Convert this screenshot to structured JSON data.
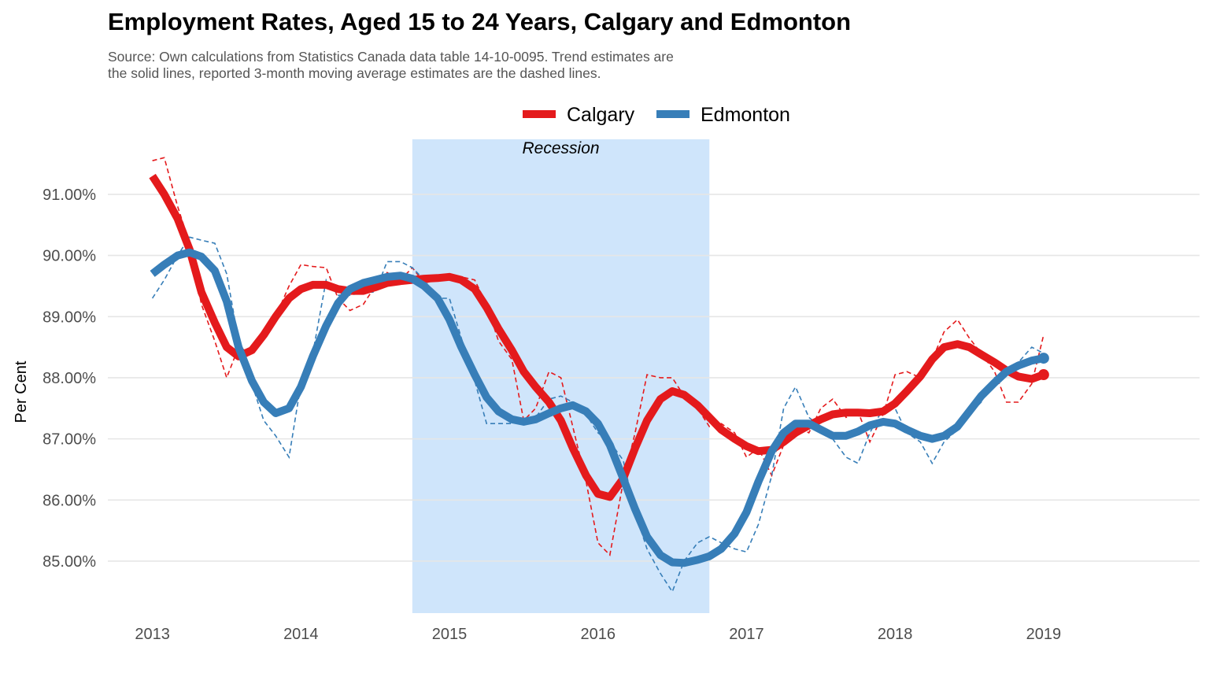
{
  "chart_data": {
    "type": "line",
    "title": "Employment Rates, Aged 15 to 24 Years, Calgary and Edmonton",
    "subtitle_lines": [
      "Source: Own calculations from Statistics Canada data table 14-10-0095. Trend estimates are",
      "the solid lines, reported 3-month moving average estimates are the dashed lines."
    ],
    "ylabel": "Per Cent",
    "xlabel": "",
    "x_ticks": [
      "2013",
      "2014",
      "2015",
      "2016",
      "2017",
      "2018",
      "2019"
    ],
    "y_ticks": [
      "85.00%",
      "86.00%",
      "87.00%",
      "88.00%",
      "89.00%",
      "90.00%",
      "91.00%"
    ],
    "y_tick_values": [
      85,
      86,
      87,
      88,
      89,
      90,
      91
    ],
    "xlim": [
      2012.7,
      2020.05
    ],
    "ylim": [
      84.15,
      91.9
    ],
    "grid": true,
    "legend_position": "top",
    "recession": {
      "start": 2014.75,
      "end": 2016.75,
      "label": "Recession",
      "color": "#cfe5fb"
    },
    "series": [
      {
        "name": "Calgary",
        "color": "#e41a1c",
        "trend": [
          [
            2013.0,
            91.3
          ],
          [
            2013.08,
            91.0
          ],
          [
            2013.17,
            90.6
          ],
          [
            2013.25,
            90.1
          ],
          [
            2013.33,
            89.4
          ],
          [
            2013.42,
            88.9
          ],
          [
            2013.5,
            88.5
          ],
          [
            2013.58,
            88.35
          ],
          [
            2013.67,
            88.45
          ],
          [
            2013.75,
            88.7
          ],
          [
            2013.83,
            89.0
          ],
          [
            2013.92,
            89.3
          ],
          [
            2014.0,
            89.45
          ],
          [
            2014.08,
            89.52
          ],
          [
            2014.17,
            89.52
          ],
          [
            2014.25,
            89.45
          ],
          [
            2014.33,
            89.42
          ],
          [
            2014.42,
            89.42
          ],
          [
            2014.5,
            89.48
          ],
          [
            2014.58,
            89.55
          ],
          [
            2014.67,
            89.58
          ],
          [
            2014.75,
            89.6
          ],
          [
            2014.83,
            89.62
          ],
          [
            2014.92,
            89.63
          ],
          [
            2015.0,
            89.65
          ],
          [
            2015.08,
            89.6
          ],
          [
            2015.17,
            89.45
          ],
          [
            2015.25,
            89.15
          ],
          [
            2015.33,
            88.8
          ],
          [
            2015.42,
            88.45
          ],
          [
            2015.5,
            88.1
          ],
          [
            2015.58,
            87.85
          ],
          [
            2015.67,
            87.6
          ],
          [
            2015.75,
            87.3
          ],
          [
            2015.83,
            86.85
          ],
          [
            2015.92,
            86.4
          ],
          [
            2016.0,
            86.1
          ],
          [
            2016.08,
            86.05
          ],
          [
            2016.17,
            86.35
          ],
          [
            2016.25,
            86.85
          ],
          [
            2016.33,
            87.3
          ],
          [
            2016.42,
            87.65
          ],
          [
            2016.5,
            87.78
          ],
          [
            2016.58,
            87.72
          ],
          [
            2016.67,
            87.55
          ],
          [
            2016.75,
            87.35
          ],
          [
            2016.83,
            87.15
          ],
          [
            2016.92,
            87.0
          ],
          [
            2017.0,
            86.88
          ],
          [
            2017.08,
            86.8
          ],
          [
            2017.17,
            86.82
          ],
          [
            2017.25,
            86.95
          ],
          [
            2017.33,
            87.1
          ],
          [
            2017.42,
            87.22
          ],
          [
            2017.5,
            87.32
          ],
          [
            2017.58,
            87.4
          ],
          [
            2017.67,
            87.43
          ],
          [
            2017.75,
            87.43
          ],
          [
            2017.83,
            87.42
          ],
          [
            2017.92,
            87.45
          ],
          [
            2018.0,
            87.58
          ],
          [
            2018.08,
            87.78
          ],
          [
            2018.17,
            88.02
          ],
          [
            2018.25,
            88.3
          ],
          [
            2018.33,
            88.5
          ],
          [
            2018.42,
            88.55
          ],
          [
            2018.5,
            88.5
          ],
          [
            2018.58,
            88.38
          ],
          [
            2018.67,
            88.25
          ],
          [
            2018.75,
            88.12
          ],
          [
            2018.83,
            88.02
          ],
          [
            2018.92,
            87.98
          ],
          [
            2019.0,
            88.05
          ]
        ],
        "reported": [
          [
            2013.0,
            91.55
          ],
          [
            2013.08,
            91.6
          ],
          [
            2013.17,
            90.8
          ],
          [
            2013.25,
            90.2
          ],
          [
            2013.33,
            89.2
          ],
          [
            2013.42,
            88.6
          ],
          [
            2013.5,
            88.0
          ],
          [
            2013.58,
            88.5
          ],
          [
            2013.67,
            88.4
          ],
          [
            2013.75,
            88.7
          ],
          [
            2013.83,
            89.0
          ],
          [
            2013.92,
            89.5
          ],
          [
            2014.0,
            89.85
          ],
          [
            2014.08,
            89.82
          ],
          [
            2014.17,
            89.8
          ],
          [
            2014.25,
            89.3
          ],
          [
            2014.33,
            89.1
          ],
          [
            2014.42,
            89.2
          ],
          [
            2014.5,
            89.5
          ],
          [
            2014.58,
            89.72
          ],
          [
            2014.67,
            89.6
          ],
          [
            2014.75,
            89.8
          ],
          [
            2014.83,
            89.55
          ],
          [
            2014.92,
            89.6
          ],
          [
            2015.0,
            89.7
          ],
          [
            2015.08,
            89.65
          ],
          [
            2015.17,
            89.6
          ],
          [
            2015.25,
            89.2
          ],
          [
            2015.33,
            88.6
          ],
          [
            2015.42,
            88.3
          ],
          [
            2015.5,
            87.3
          ],
          [
            2015.58,
            87.5
          ],
          [
            2015.67,
            88.1
          ],
          [
            2015.75,
            88.0
          ],
          [
            2015.83,
            87.2
          ],
          [
            2015.92,
            86.3
          ],
          [
            2016.0,
            85.3
          ],
          [
            2016.08,
            85.1
          ],
          [
            2016.17,
            86.3
          ],
          [
            2016.25,
            87.1
          ],
          [
            2016.33,
            88.05
          ],
          [
            2016.42,
            88.0
          ],
          [
            2016.5,
            88.0
          ],
          [
            2016.58,
            87.7
          ],
          [
            2016.67,
            87.5
          ],
          [
            2016.75,
            87.2
          ],
          [
            2016.83,
            87.25
          ],
          [
            2016.92,
            87.1
          ],
          [
            2017.0,
            86.7
          ],
          [
            2017.08,
            86.85
          ],
          [
            2017.17,
            86.4
          ],
          [
            2017.25,
            86.9
          ],
          [
            2017.33,
            87.2
          ],
          [
            2017.42,
            87.1
          ],
          [
            2017.5,
            87.5
          ],
          [
            2017.58,
            87.65
          ],
          [
            2017.67,
            87.35
          ],
          [
            2017.75,
            87.45
          ],
          [
            2017.83,
            86.95
          ],
          [
            2017.92,
            87.4
          ],
          [
            2018.0,
            88.05
          ],
          [
            2018.08,
            88.1
          ],
          [
            2018.17,
            88.0
          ],
          [
            2018.25,
            88.3
          ],
          [
            2018.33,
            88.75
          ],
          [
            2018.42,
            88.95
          ],
          [
            2018.5,
            88.65
          ],
          [
            2018.58,
            88.4
          ],
          [
            2018.67,
            88.1
          ],
          [
            2018.75,
            87.6
          ],
          [
            2018.83,
            87.6
          ],
          [
            2018.92,
            87.9
          ],
          [
            2019.0,
            88.7
          ]
        ]
      },
      {
        "name": "Edmonton",
        "color": "#377eb8",
        "trend": [
          [
            2013.0,
            89.7
          ],
          [
            2013.08,
            89.85
          ],
          [
            2013.17,
            90.0
          ],
          [
            2013.25,
            90.05
          ],
          [
            2013.33,
            89.98
          ],
          [
            2013.42,
            89.75
          ],
          [
            2013.5,
            89.25
          ],
          [
            2013.58,
            88.5
          ],
          [
            2013.67,
            87.95
          ],
          [
            2013.75,
            87.6
          ],
          [
            2013.83,
            87.42
          ],
          [
            2013.92,
            87.5
          ],
          [
            2014.0,
            87.85
          ],
          [
            2014.08,
            88.35
          ],
          [
            2014.17,
            88.85
          ],
          [
            2014.25,
            89.22
          ],
          [
            2014.33,
            89.45
          ],
          [
            2014.42,
            89.55
          ],
          [
            2014.5,
            89.6
          ],
          [
            2014.58,
            89.65
          ],
          [
            2014.67,
            89.67
          ],
          [
            2014.75,
            89.62
          ],
          [
            2014.83,
            89.5
          ],
          [
            2014.92,
            89.3
          ],
          [
            2015.0,
            88.95
          ],
          [
            2015.08,
            88.5
          ],
          [
            2015.17,
            88.05
          ],
          [
            2015.25,
            87.68
          ],
          [
            2015.33,
            87.45
          ],
          [
            2015.42,
            87.32
          ],
          [
            2015.5,
            87.28
          ],
          [
            2015.58,
            87.32
          ],
          [
            2015.67,
            87.42
          ],
          [
            2015.75,
            87.5
          ],
          [
            2015.83,
            87.55
          ],
          [
            2015.92,
            87.45
          ],
          [
            2016.0,
            87.25
          ],
          [
            2016.08,
            86.9
          ],
          [
            2016.17,
            86.35
          ],
          [
            2016.25,
            85.85
          ],
          [
            2016.33,
            85.4
          ],
          [
            2016.42,
            85.1
          ],
          [
            2016.5,
            84.98
          ],
          [
            2016.58,
            84.97
          ],
          [
            2016.67,
            85.02
          ],
          [
            2016.75,
            85.08
          ],
          [
            2016.83,
            85.2
          ],
          [
            2016.92,
            85.45
          ],
          [
            2017.0,
            85.8
          ],
          [
            2017.08,
            86.3
          ],
          [
            2017.17,
            86.8
          ],
          [
            2017.25,
            87.1
          ],
          [
            2017.33,
            87.25
          ],
          [
            2017.42,
            87.25
          ],
          [
            2017.5,
            87.15
          ],
          [
            2017.58,
            87.05
          ],
          [
            2017.67,
            87.05
          ],
          [
            2017.75,
            87.12
          ],
          [
            2017.83,
            87.22
          ],
          [
            2017.92,
            87.28
          ],
          [
            2018.0,
            87.25
          ],
          [
            2018.08,
            87.15
          ],
          [
            2018.17,
            87.05
          ],
          [
            2018.25,
            87.0
          ],
          [
            2018.33,
            87.05
          ],
          [
            2018.42,
            87.2
          ],
          [
            2018.5,
            87.45
          ],
          [
            2018.58,
            87.7
          ],
          [
            2018.67,
            87.92
          ],
          [
            2018.75,
            88.1
          ],
          [
            2018.83,
            88.2
          ],
          [
            2018.92,
            88.28
          ],
          [
            2019.0,
            88.32
          ]
        ],
        "reported": [
          [
            2013.0,
            89.3
          ],
          [
            2013.08,
            89.6
          ],
          [
            2013.17,
            90.0
          ],
          [
            2013.25,
            90.3
          ],
          [
            2013.33,
            90.25
          ],
          [
            2013.42,
            90.2
          ],
          [
            2013.5,
            89.7
          ],
          [
            2013.58,
            88.6
          ],
          [
            2013.67,
            87.9
          ],
          [
            2013.75,
            87.3
          ],
          [
            2013.83,
            87.05
          ],
          [
            2013.92,
            86.7
          ],
          [
            2014.0,
            87.9
          ],
          [
            2014.08,
            88.4
          ],
          [
            2014.17,
            89.6
          ],
          [
            2014.25,
            89.35
          ],
          [
            2014.33,
            89.35
          ],
          [
            2014.42,
            89.4
          ],
          [
            2014.5,
            89.4
          ],
          [
            2014.58,
            89.9
          ],
          [
            2014.67,
            89.9
          ],
          [
            2014.75,
            89.8
          ],
          [
            2014.83,
            89.6
          ],
          [
            2014.92,
            89.3
          ],
          [
            2015.0,
            89.3
          ],
          [
            2015.08,
            88.65
          ],
          [
            2015.17,
            87.95
          ],
          [
            2015.25,
            87.25
          ],
          [
            2015.33,
            87.25
          ],
          [
            2015.42,
            87.25
          ],
          [
            2015.5,
            87.3
          ],
          [
            2015.58,
            87.35
          ],
          [
            2015.67,
            87.65
          ],
          [
            2015.75,
            87.7
          ],
          [
            2015.83,
            87.6
          ],
          [
            2015.92,
            87.4
          ],
          [
            2016.0,
            87.1
          ],
          [
            2016.08,
            86.95
          ],
          [
            2016.17,
            86.65
          ],
          [
            2016.25,
            85.8
          ],
          [
            2016.33,
            85.2
          ],
          [
            2016.42,
            84.8
          ],
          [
            2016.5,
            84.5
          ],
          [
            2016.58,
            85.0
          ],
          [
            2016.67,
            85.3
          ],
          [
            2016.75,
            85.4
          ],
          [
            2016.83,
            85.3
          ],
          [
            2016.92,
            85.2
          ],
          [
            2017.0,
            85.15
          ],
          [
            2017.08,
            85.6
          ],
          [
            2017.17,
            86.4
          ],
          [
            2017.25,
            87.5
          ],
          [
            2017.33,
            87.85
          ],
          [
            2017.42,
            87.35
          ],
          [
            2017.5,
            87.2
          ],
          [
            2017.58,
            87.0
          ],
          [
            2017.67,
            86.7
          ],
          [
            2017.75,
            86.6
          ],
          [
            2017.83,
            87.1
          ],
          [
            2017.92,
            87.5
          ],
          [
            2018.0,
            87.5
          ],
          [
            2018.08,
            87.1
          ],
          [
            2018.17,
            86.95
          ],
          [
            2018.25,
            86.6
          ],
          [
            2018.33,
            86.95
          ],
          [
            2018.42,
            87.15
          ],
          [
            2018.5,
            87.4
          ],
          [
            2018.58,
            87.6
          ],
          [
            2018.67,
            88.0
          ],
          [
            2018.75,
            88.1
          ],
          [
            2018.83,
            88.25
          ],
          [
            2018.92,
            88.5
          ],
          [
            2019.0,
            88.4
          ]
        ]
      }
    ]
  }
}
